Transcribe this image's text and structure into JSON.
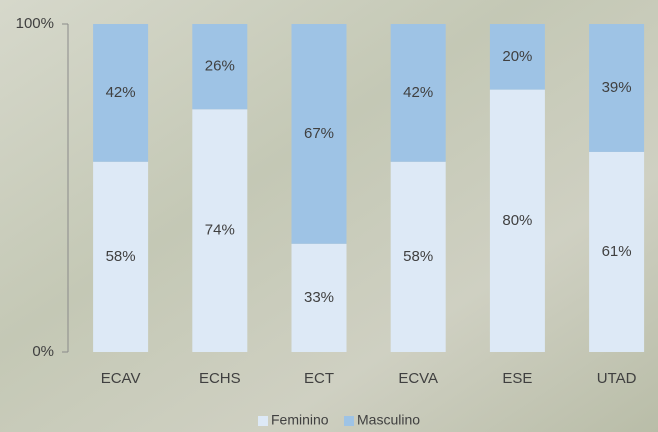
{
  "chart_data": {
    "type": "stacked_bar",
    "categories": [
      "ECAV",
      "ECHS",
      "ECT",
      "ECVA",
      "ESE",
      "UTAD"
    ],
    "series": [
      {
        "name": "Feminino",
        "color": "#dde9f6",
        "values": [
          58,
          74,
          33,
          58,
          80,
          61
        ],
        "value_labels": [
          "58%",
          "74%",
          "33%",
          "58%",
          "80%",
          "61%"
        ]
      },
      {
        "name": "Masculino",
        "color": "#9ec3e5",
        "values": [
          42,
          26,
          67,
          42,
          20,
          39
        ],
        "value_labels": [
          "42%",
          "26%",
          "67%",
          "42%",
          "20%",
          "39%"
        ]
      }
    ],
    "ylim": [
      0,
      100
    ],
    "yticks": [
      {
        "value": 0,
        "label": "0%"
      },
      {
        "value": 100,
        "label": "100%"
      }
    ],
    "legend": "bottom"
  }
}
